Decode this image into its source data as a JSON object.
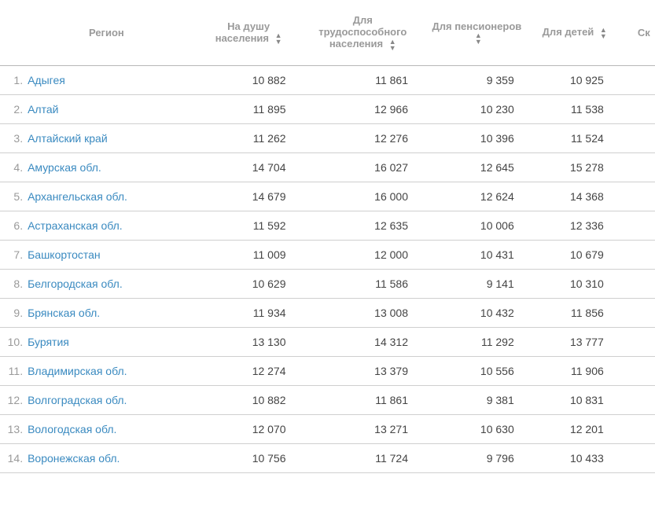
{
  "table": {
    "columns": {
      "region": "Регион",
      "per_capita": "На душу населения",
      "working": "Для трудоспособного населения",
      "pensioners": "Для пенсионеров",
      "children": "Для детей",
      "partial": "Ск"
    },
    "rows": [
      {
        "idx": "1.",
        "name": "Адыгея",
        "a": "10 882",
        "b": "11 861",
        "c": "9 359",
        "d": "10 925"
      },
      {
        "idx": "2.",
        "name": "Алтай",
        "a": "11 895",
        "b": "12 966",
        "c": "10 230",
        "d": "11 538"
      },
      {
        "idx": "3.",
        "name": "Алтайский край",
        "a": "11 262",
        "b": "12 276",
        "c": "10 396",
        "d": "11 524"
      },
      {
        "idx": "4.",
        "name": "Амурская обл.",
        "a": "14 704",
        "b": "16 027",
        "c": "12 645",
        "d": "15 278"
      },
      {
        "idx": "5.",
        "name": "Архангельская обл.",
        "a": "14 679",
        "b": "16 000",
        "c": "12 624",
        "d": "14 368"
      },
      {
        "idx": "6.",
        "name": "Астраханская обл.",
        "a": "11 592",
        "b": "12 635",
        "c": "10 006",
        "d": "12 336"
      },
      {
        "idx": "7.",
        "name": "Башкортостан",
        "a": "11 009",
        "b": "12 000",
        "c": "10 431",
        "d": "10 679"
      },
      {
        "idx": "8.",
        "name": "Белгородская обл.",
        "a": "10 629",
        "b": "11 586",
        "c": "9 141",
        "d": "10 310"
      },
      {
        "idx": "9.",
        "name": "Брянская обл.",
        "a": "11 934",
        "b": "13 008",
        "c": "10 432",
        "d": "11 856"
      },
      {
        "idx": "10.",
        "name": "Бурятия",
        "a": "13 130",
        "b": "14 312",
        "c": "11 292",
        "d": "13 777"
      },
      {
        "idx": "11.",
        "name": "Владимирская обл.",
        "a": "12 274",
        "b": "13 379",
        "c": "10 556",
        "d": "11 906"
      },
      {
        "idx": "12.",
        "name": "Волгоградская обл.",
        "a": "10 882",
        "b": "11 861",
        "c": "9 381",
        "d": "10 831"
      },
      {
        "idx": "13.",
        "name": "Вологодская обл.",
        "a": "12 070",
        "b": "13 271",
        "c": "10 630",
        "d": "12 201"
      },
      {
        "idx": "14.",
        "name": "Воронежская обл.",
        "a": "10 756",
        "b": "11 724",
        "c": "9 796",
        "d": "10 433"
      }
    ]
  },
  "styling": {
    "header_text_color": "#9a9a9a",
    "link_color": "#3a8ac0",
    "number_color": "#444444",
    "border_color": "#cfcfcf",
    "header_border_color": "#b8b8b8",
    "background": "#ffffff",
    "font_size_body": 14,
    "font_size_header": 13
  }
}
